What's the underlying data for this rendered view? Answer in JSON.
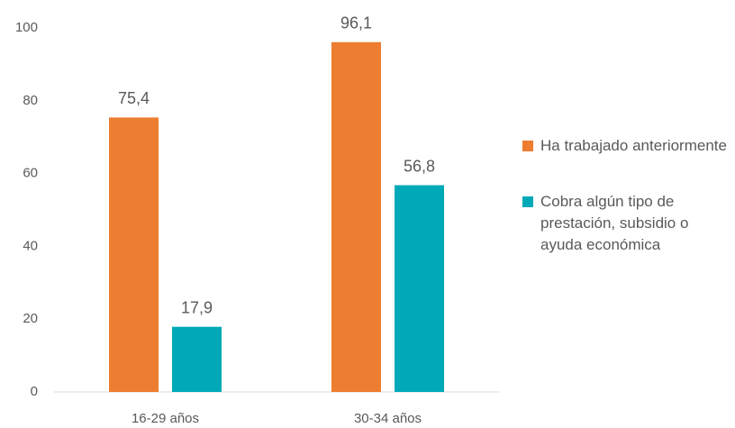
{
  "chart_data": {
    "type": "bar",
    "categories": [
      "16-29 años",
      "30-34 años"
    ],
    "series": [
      {
        "name": "Ha trabajado anteriormente",
        "color": "#ED7D31",
        "values": [
          75.4,
          96.1
        ],
        "value_labels": [
          "75,4",
          "96,1"
        ]
      },
      {
        "name": "Cobra algún tipo de prestación, subsidio o ayuda económica",
        "color": "#00A9B8",
        "values": [
          17.9,
          56.8
        ],
        "value_labels": [
          "17,9",
          "56,8"
        ]
      }
    ],
    "ylim": [
      0,
      100
    ],
    "yticks": [
      0,
      20,
      40,
      60,
      80,
      100
    ],
    "grid": false,
    "legend": "right"
  }
}
